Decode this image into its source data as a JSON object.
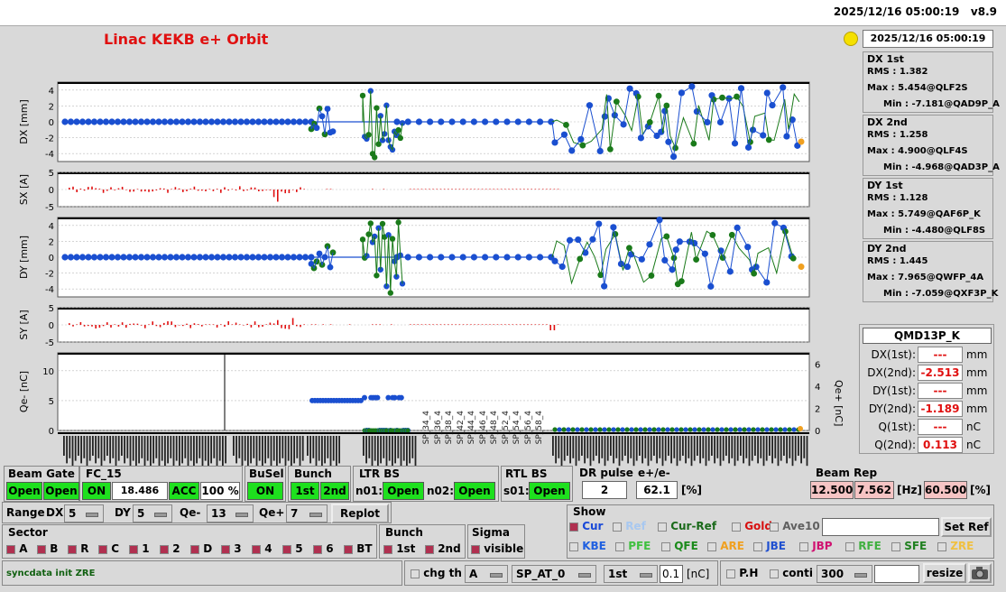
{
  "header": {
    "timestamp": "2025/12/16 05:00:19",
    "version": "v8.9"
  },
  "app": {
    "title": "Linac KEKB e+ Orbit",
    "clock": "2025/12/16 05:00:19"
  },
  "plots": {
    "dx": {
      "ylabel": "DX [mm]",
      "ticks": [
        "4",
        "2",
        "0",
        "-2",
        "-4"
      ]
    },
    "sx": {
      "ylabel": "SX [A]",
      "ticks": [
        "5",
        "0",
        "-5"
      ]
    },
    "dy": {
      "ylabel": "DY [mm]",
      "ticks": [
        "4",
        "2",
        "0",
        "-2",
        "-4"
      ]
    },
    "sy": {
      "ylabel": "SY [A]",
      "ticks": [
        "5",
        "0",
        "-5"
      ]
    },
    "q": {
      "ylabel": "Qe- [nC]",
      "ylabel_right": "Qe+ [nC]",
      "ticks": [
        "10",
        "5",
        "0"
      ],
      "ticks_right": [
        "6",
        "4",
        "2",
        "0"
      ]
    }
  },
  "stats": [
    {
      "title": "DX 1st",
      "rms": "RMS :  1.382",
      "max": "Max :  5.454@QLF2S",
      "min": "Min :  -7.181@QAD9P_A"
    },
    {
      "title": "DX 2nd",
      "rms": "RMS :  1.258",
      "max": "Max :  4.900@QLF4S",
      "min": "Min :  -4.968@QAD3P_A"
    },
    {
      "title": "DY 1st",
      "rms": "RMS :  1.128",
      "max": "Max :  5.749@QAF6P_K",
      "min": "Min :  -4.480@QLF8S"
    },
    {
      "title": "DY 2nd",
      "rms": "RMS :  1.445",
      "max": "Max :  7.965@QWFP_4A",
      "min": "Min :  -7.059@QXF3P_K"
    }
  ],
  "monitor": {
    "name": "QMD13P_K",
    "rows": [
      {
        "label": "DX(1st):",
        "value": "---",
        "unit": "mm"
      },
      {
        "label": "DX(2nd):",
        "value": "-2.513",
        "unit": "mm"
      },
      {
        "label": "DY(1st):",
        "value": "---",
        "unit": "mm"
      },
      {
        "label": "DY(2nd):",
        "value": "-1.189",
        "unit": "mm"
      },
      {
        "label": "Q(1st):",
        "value": "---",
        "unit": "nC"
      },
      {
        "label": "Q(2nd):",
        "value": "0.113",
        "unit": "nC"
      }
    ]
  },
  "xlabels_visible": [
    "SP_34_4",
    "SP_36_4",
    "SP_38_4",
    "SP_42_4",
    "SP_44_4",
    "SP_46_4",
    "SP_48_4",
    "SP_52_4",
    "SP_54_4",
    "SP_56_4",
    "SP_58_4"
  ],
  "controls": {
    "beam_gate": {
      "label": "Beam Gate",
      "b1": "Open",
      "b2": "Open"
    },
    "fc15": {
      "label": "FC_15",
      "state": "ON",
      "voltage": "18.486 kV",
      "mode": "ACC",
      "pct": "100 %"
    },
    "busel": {
      "label": "BuSel",
      "state": "ON"
    },
    "bunch": {
      "label": "Bunch",
      "b1": "1st",
      "b2": "2nd"
    },
    "ltr_bs": {
      "label": "LTR BS",
      "n01": "n01:",
      "n01_state": "Open",
      "n02": "n02:",
      "n02_state": "Open"
    },
    "rtl_bs": {
      "label": "RTL BS",
      "s01": "s01:",
      "s01_state": "Open"
    },
    "dr_pulse": {
      "label": "DR pulse",
      "value": "2"
    },
    "ratio": {
      "label": "e+/e-",
      "value": "62.1",
      "unit": "[%]"
    },
    "beam_rep": {
      "label": "Beam Rep",
      "v1": "12.500",
      "v2": "7.562",
      "unit1": "[Hz]",
      "v3": "60.500",
      "unit2": "[%]"
    }
  },
  "range": {
    "label": "Range",
    "dx_label": "DX",
    "dx": "5",
    "dy_label": "DY",
    "dy": "5",
    "qe_label": "Qe-",
    "qe": "13",
    "qp_label": "Qe+",
    "qp": "7",
    "replot": "Replot"
  },
  "sector": {
    "label": "Sector",
    "items": [
      "A",
      "B",
      "R",
      "C",
      "1",
      "2",
      "D",
      "3",
      "4",
      "5",
      "6",
      "BT"
    ]
  },
  "bunch2": {
    "label": "Bunch",
    "items": [
      "1st",
      "2nd"
    ]
  },
  "sigma": {
    "label": "Sigma",
    "item": "visible"
  },
  "show": {
    "label": "Show",
    "row1": [
      {
        "t": "Cur",
        "c": "#1848d8",
        "on": true
      },
      {
        "t": "Ref",
        "c": "#a8c8f0",
        "on": false
      },
      {
        "t": "Cur-Ref",
        "c": "#1a6a1a",
        "on": false
      },
      {
        "t": "Gold",
        "c": "#d81010",
        "on": false
      },
      {
        "t": "Ave10",
        "c": "#606060",
        "on": false
      }
    ],
    "setref": "Set Ref",
    "row2": [
      {
        "t": "KBE",
        "c": "#2060e0"
      },
      {
        "t": "PFE",
        "c": "#40c040"
      },
      {
        "t": "QFE",
        "c": "#1a8a1a"
      },
      {
        "t": "ARE",
        "c": "#f0a020"
      },
      {
        "t": "JBE",
        "c": "#2050d0"
      },
      {
        "t": "JBP",
        "c": "#d01070"
      },
      {
        "t": "RFE",
        "c": "#40b040"
      },
      {
        "t": "SFE",
        "c": "#208020"
      },
      {
        "t": "ZRE",
        "c": "#f0c040"
      }
    ]
  },
  "bottom": {
    "status": "syncdata init ZRE",
    "chg_th": "chg th",
    "sel1": "A",
    "sel2": "SP_AT_0",
    "sel3": "1st",
    "thr": "0.1",
    "thr_unit": "[nC]",
    "ph": "P.H",
    "conti": "conti",
    "sel4": "300",
    "resize": "resize"
  }
}
